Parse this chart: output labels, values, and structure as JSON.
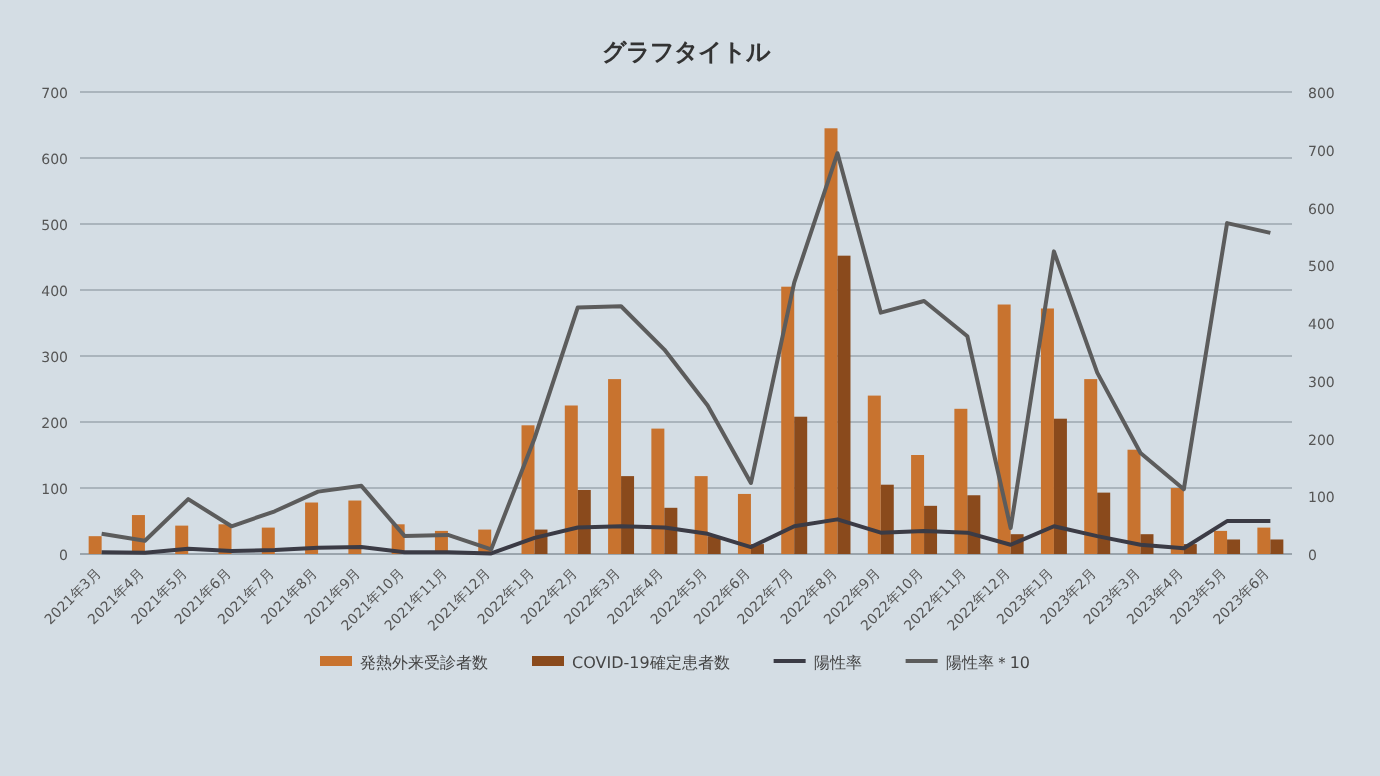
{
  "chart_data": {
    "type": "bar",
    "title": "グラフタイトル",
    "categories": [
      "2021年3月",
      "2021年4月",
      "2021年5月",
      "2021年6月",
      "2021年7月",
      "2021年8月",
      "2021年9月",
      "2021年10月",
      "2021年11月",
      "2021年12月",
      "2022年1月",
      "2022年2月",
      "2022年3月",
      "2022年4月",
      "2022年5月",
      "2022年6月",
      "2022年7月",
      "2022年8月",
      "2022年9月",
      "2022年10月",
      "2022年11月",
      "2022年12月",
      "2023年1月",
      "2023年2月",
      "2023年3月",
      "2023年4月",
      "2023年5月",
      "2023年6月"
    ],
    "series": [
      {
        "name": "発熱外来受診者数",
        "color": "#c8732f",
        "values": [
          27,
          59,
          43,
          45,
          40,
          78,
          81,
          45,
          35,
          37,
          195,
          225,
          265,
          190,
          118,
          91,
          405,
          645,
          240,
          150,
          220,
          378,
          372,
          265,
          158,
          100,
          35,
          40
        ]
      },
      {
        "name": "COVID-19確定患者数",
        "color": "#8a4a1c",
        "values": [
          null,
          null,
          null,
          null,
          null,
          null,
          null,
          null,
          null,
          null,
          37,
          97,
          118,
          70,
          27,
          15,
          208,
          452,
          105,
          73,
          89,
          30,
          205,
          93,
          30,
          15,
          22,
          22
        ]
      },
      {
        "name": "陽性率",
        "type": "line",
        "axis": "y2",
        "color": "#3b3b45",
        "values": [
          3,
          2,
          9,
          5,
          7,
          11,
          12,
          3,
          3,
          1,
          28,
          46,
          48,
          46,
          35,
          12,
          48,
          60,
          37,
          40,
          37,
          16,
          48,
          31,
          16,
          10,
          57,
          57
        ]
      },
      {
        "name": "陽性率＊10",
        "type": "line",
        "axis": "y2",
        "color": "#5c5c5c",
        "values": [
          35,
          23,
          95,
          48,
          74,
          108,
          118,
          31,
          33,
          8,
          200,
          427,
          429,
          354,
          257,
          123,
          470,
          694,
          418,
          438,
          377,
          45,
          524,
          314,
          175,
          112,
          573,
          556
        ]
      }
    ],
    "ylim": [
      0,
      700
    ],
    "yticks": [
      0,
      100,
      200,
      300,
      400,
      500,
      600,
      700
    ],
    "y2lim": [
      0,
      800
    ],
    "y2ticks": [
      0,
      100,
      200,
      300,
      400,
      500,
      600,
      700,
      800
    ],
    "grid": "y",
    "legend": "bottom"
  }
}
